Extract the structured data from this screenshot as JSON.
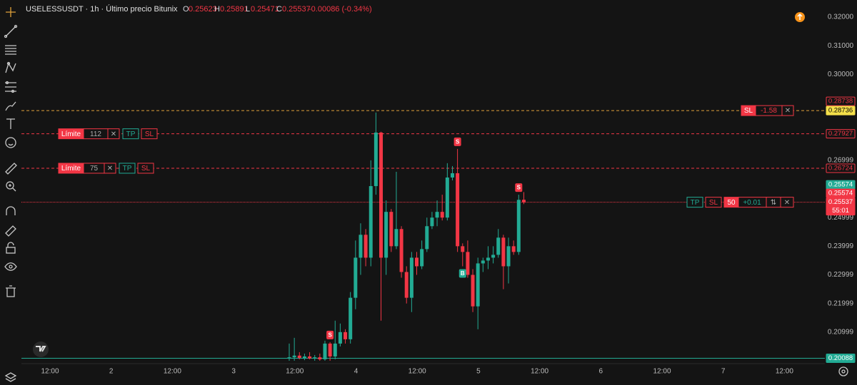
{
  "header": {
    "symbol": "USELESSUSDT · 1h · Último precio Bitunix",
    "o_label": "O",
    "h_label": "H",
    "l_label": "L",
    "c_label": "C",
    "change": "-0.00086 (-0.34%)"
  },
  "chart_data": {
    "type": "candlestick",
    "up_color": "#22ab94",
    "down_color": "#f23645",
    "open": [
      0.201,
      0.2012,
      0.2018,
      0.201,
      0.2015,
      0.2008,
      0.2012,
      0.2005,
      0.206,
      0.2015,
      0.206,
      0.21,
      0.2075,
      0.222,
      0.236,
      0.244,
      0.236,
      0.261,
      0.2797,
      0.236,
      0.252,
      0.24,
      0.246,
      0.231,
      0.222,
      0.236,
      0.233,
      0.239,
      0.247,
      0.25,
      0.252,
      0.25,
      0.264,
      0.2655,
      0.24,
      0.238,
      0.23,
      0.219,
      0.234,
      0.235,
      0.236,
      0.237,
      0.243,
      0.233,
      0.24,
      0.238,
      0.25623
    ],
    "high": [
      0.206,
      0.208,
      0.203,
      0.2025,
      0.203,
      0.202,
      0.2025,
      0.207,
      0.2065,
      0.214,
      0.213,
      0.211,
      0.224,
      0.242,
      0.248,
      0.246,
      0.27,
      0.2867,
      0.28,
      0.256,
      0.253,
      0.266,
      0.247,
      0.233,
      0.238,
      0.238,
      0.242,
      0.25,
      0.252,
      0.256,
      0.258,
      0.269,
      0.268,
      0.274,
      0.241,
      0.242,
      0.232,
      0.236,
      0.236,
      0.24,
      0.24,
      0.246,
      0.244,
      0.243,
      0.242,
      0.258,
      0.25891
    ],
    "low": [
      0.2,
      0.2,
      0.2005,
      0.2002,
      0.2005,
      0.2,
      0.2,
      0.2,
      0.2,
      0.2005,
      0.205,
      0.206,
      0.206,
      0.218,
      0.23,
      0.233,
      0.233,
      0.258,
      0.214,
      0.23,
      0.238,
      0.239,
      0.229,
      0.22,
      0.217,
      0.23,
      0.232,
      0.238,
      0.246,
      0.247,
      0.249,
      0.249,
      0.263,
      0.238,
      0.233,
      0.229,
      0.217,
      0.211,
      0.231,
      0.232,
      0.234,
      0.236,
      0.225,
      0.227,
      0.237,
      0.237,
      0.25471
    ],
    "close": [
      0.2012,
      0.2018,
      0.201,
      0.2015,
      0.2008,
      0.2012,
      0.2005,
      0.206,
      0.2015,
      0.206,
      0.21,
      0.2075,
      0.222,
      0.236,
      0.244,
      0.236,
      0.261,
      0.2797,
      0.236,
      0.252,
      0.24,
      0.246,
      0.231,
      0.222,
      0.236,
      0.233,
      0.239,
      0.247,
      0.25,
      0.252,
      0.25,
      0.264,
      0.2655,
      0.24,
      0.238,
      0.23,
      0.219,
      0.234,
      0.235,
      0.236,
      0.237,
      0.243,
      0.233,
      0.24,
      0.238,
      0.2562,
      0.25537
    ],
    "ylim": [
      0.199,
      0.326
    ],
    "yticks": [
      {
        "value": 0.32,
        "label": "0.32000"
      },
      {
        "value": 0.31,
        "label": "0.31000"
      },
      {
        "value": 0.3,
        "label": "0.30000"
      },
      0.26999,
      0.24999,
      0.23999,
      0.22999,
      0.21999,
      0.20999
    ],
    "time_labels": [
      "12:00",
      "2",
      "12:00",
      "3",
      "12:00",
      "4",
      "12:00",
      "5",
      "12:00",
      "6",
      "12:00",
      "7",
      "12:00"
    ],
    "price_lines": [
      {
        "value": 0.28738,
        "color": "#e0a13a",
        "style": "dashed"
      },
      {
        "value": 0.27927,
        "color": "#f23645",
        "style": "dashed"
      },
      {
        "value": 0.26724,
        "color": "#f23645",
        "style": "dashed"
      },
      {
        "value": 0.25537,
        "color": "#f23645",
        "style": "dotted"
      },
      {
        "value": 0.20088,
        "color": "#22ab94",
        "style": "solid"
      }
    ],
    "price_tags": [
      {
        "value": 0.28738,
        "color": "#f23645",
        "filled": false
      },
      {
        "value": 0.28736,
        "color": "#f5e04a",
        "filled": true
      },
      {
        "value": 0.27927,
        "color": "#f23645",
        "filled": false
      },
      {
        "value": 0.26724,
        "color": "#f23645",
        "filled": false
      },
      {
        "value": 0.25574,
        "color": "#22ab94",
        "filled": true
      },
      {
        "value": 0.25574,
        "color": "#f23645",
        "filled": true
      },
      {
        "value": 0.25537,
        "color": "#f23645",
        "filled": true,
        "countdown": "55:01"
      },
      {
        "value": 0.20088,
        "color": "#22ab94",
        "filled": true
      }
    ],
    "markers": [
      "S",
      "S",
      "S",
      "B"
    ]
  },
  "orders": [
    {
      "label": "Límite",
      "qty": 112,
      "cancel": "✕",
      "tp": "TP",
      "sl": "SL"
    },
    {
      "label": "Límite",
      "qty": 75,
      "cancel": "✕",
      "tp": "TP",
      "sl": "SL"
    }
  ],
  "stop_order": {
    "label": "SL",
    "pnl": -1.58,
    "cancel": "✕"
  },
  "position": {
    "tp": "TP",
    "sl": "SL",
    "qty": 50,
    "pnl": "+0.01",
    "reverse": "⇅",
    "cancel": "✕"
  }
}
